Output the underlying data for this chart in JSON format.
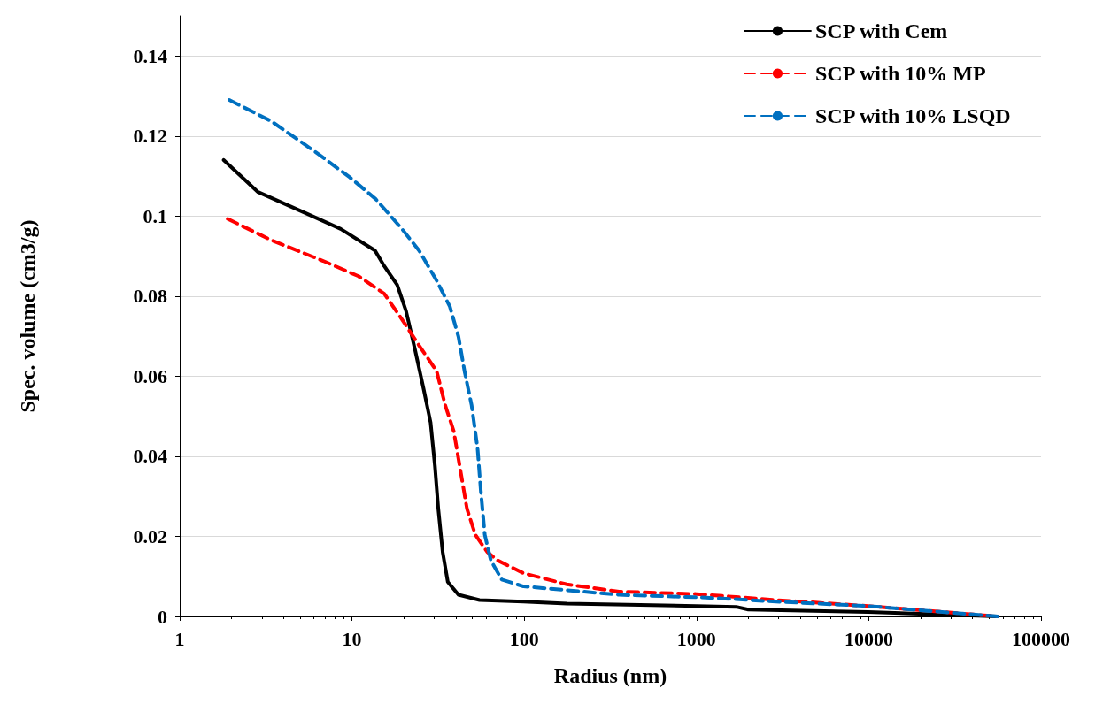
{
  "chart_data": {
    "type": "line",
    "xlabel": "Radius (nm)",
    "ylabel": "Spec. volume (cm3/g)",
    "log": "x",
    "xlim": [
      1,
      100000
    ],
    "xticks": [
      1,
      10,
      100,
      1000,
      10000,
      100000
    ],
    "ylim": [
      0,
      0.15
    ],
    "yticks": [
      0,
      0.02,
      0.04,
      0.06,
      0.08,
      0.1,
      0.12,
      0.14
    ],
    "grid": "y",
    "legend": "top right",
    "marker": "none",
    "series": [
      {
        "name": "SCP with Cem",
        "color": "#000000",
        "line_style": "solid",
        "x": [
          1.8,
          2.85,
          5.4,
          8.6,
          13.6,
          15.4,
          18.3,
          20.6,
          23.2,
          26,
          28.6,
          30.3,
          31.7,
          33.6,
          36,
          41.5,
          55,
          99,
          177,
          1000,
          1700,
          2000,
          9900,
          56000
        ],
        "values": [
          0.114,
          0.106,
          0.1007,
          0.0968,
          0.0914,
          0.0875,
          0.0828,
          0.0763,
          0.0667,
          0.057,
          0.0484,
          0.0376,
          0.0269,
          0.0161,
          0.0086,
          0.0054,
          0.0041,
          0.0037,
          0.0032,
          0.0026,
          0.0024,
          0.0017,
          0.0011,
          0
        ]
      },
      {
        "name": "SCP with 10% MP",
        "color": "#ff0000",
        "line_style": "dashed",
        "x": [
          1.9,
          3.4,
          6.8,
          10.9,
          15.4,
          19.5,
          24.5,
          31,
          34.8,
          39,
          43,
          46.5,
          52,
          61,
          70,
          99,
          177,
          355,
          1000,
          2900,
          9900,
          56000
        ],
        "values": [
          0.0993,
          0.094,
          0.0888,
          0.085,
          0.0806,
          0.0742,
          0.0677,
          0.0613,
          0.0527,
          0.0462,
          0.0355,
          0.0269,
          0.0204,
          0.0161,
          0.014,
          0.0108,
          0.008,
          0.0062,
          0.0056,
          0.0041,
          0.0026,
          0
        ]
      },
      {
        "name": "SCP with 10% LSQD",
        "color": "#0070c0",
        "line_style": "dashed",
        "x": [
          1.94,
          3.4,
          6.1,
          9.7,
          13.7,
          19.5,
          24.5,
          31,
          37,
          41.5,
          45,
          49.5,
          53.6,
          56,
          59,
          64,
          74,
          99,
          355,
          1140,
          2900,
          9900,
          56000
        ],
        "values": [
          0.129,
          0.1237,
          0.1161,
          0.1097,
          0.1043,
          0.0968,
          0.0914,
          0.0839,
          0.0774,
          0.0699,
          0.0613,
          0.0527,
          0.0419,
          0.0312,
          0.0204,
          0.014,
          0.0092,
          0.0075,
          0.0054,
          0.0047,
          0.0037,
          0.0026,
          0
        ]
      }
    ]
  }
}
